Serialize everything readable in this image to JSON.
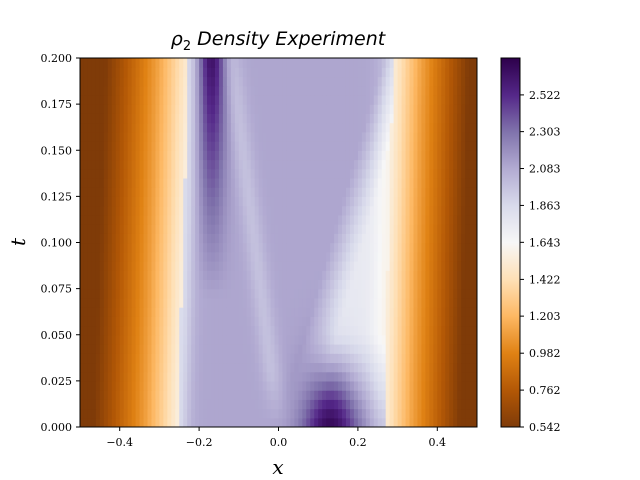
{
  "chart_data": {
    "type": "heatmap",
    "title": "ρ2 Density Experiment",
    "title_symbol": "ρ",
    "title_subscript": "2",
    "title_text": "Density Experiment",
    "xlabel": "x",
    "ylabel": "t",
    "xlim": [
      -0.5,
      0.5
    ],
    "ylim": [
      0.0,
      0.2
    ],
    "x_ticks": [
      "−0.4",
      "−0.2",
      "0.0",
      "0.2",
      "0.4"
    ],
    "x_tick_values": [
      -0.4,
      -0.2,
      0.0,
      0.2,
      0.4
    ],
    "y_ticks": [
      "0.000",
      "0.025",
      "0.050",
      "0.075",
      "0.100",
      "0.125",
      "0.150",
      "0.175",
      "0.200"
    ],
    "y_tick_values": [
      0.0,
      0.025,
      0.05,
      0.075,
      0.1,
      0.125,
      0.15,
      0.175,
      0.2
    ],
    "colormap": "PuOr",
    "colorbar": {
      "min": 0.542,
      "max": 2.742,
      "ticks": [
        "0.542",
        "0.762",
        "0.982",
        "1.203",
        "1.422",
        "1.643",
        "1.863",
        "2.083",
        "2.303",
        "2.522"
      ],
      "tick_values": [
        0.542,
        0.762,
        0.982,
        1.203,
        1.422,
        1.643,
        1.863,
        2.083,
        2.303,
        2.522
      ]
    },
    "colormap_stops": [
      "#7f3b08",
      "#b35806",
      "#e08214",
      "#fdb863",
      "#fee0b6",
      "#f7f7f7",
      "#d8daeb",
      "#b2abd2",
      "#8073ac",
      "#542788",
      "#2d004b"
    ],
    "grid": false,
    "legend": "none"
  }
}
